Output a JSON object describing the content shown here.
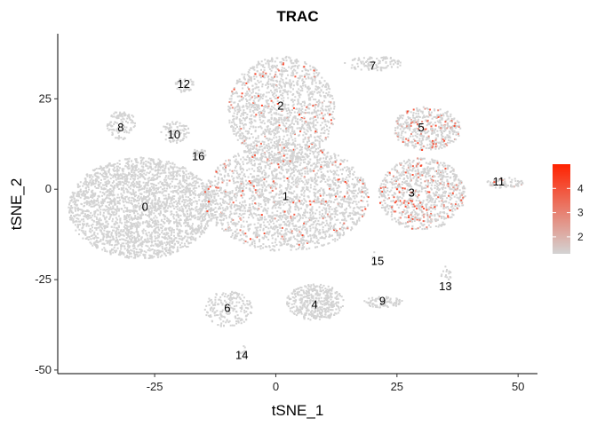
{
  "chart_data": {
    "type": "scatter",
    "title": "TRAC",
    "xlabel": "tSNE_1",
    "ylabel": "tSNE_2",
    "xlim": [
      -45,
      54
    ],
    "ylim": [
      -51,
      43
    ],
    "xticks": [
      -25,
      0,
      25,
      50
    ],
    "yticks": [
      -50,
      -25,
      0,
      25
    ],
    "grid": false,
    "colors": {
      "low": "#d3d3d3",
      "high": "#ff2200"
    },
    "legend": {
      "position": "right",
      "type": "colorbar",
      "range": [
        1.3,
        5
      ],
      "ticks": [
        2,
        3,
        4
      ]
    },
    "clusters": [
      {
        "label": "0",
        "x": -27,
        "y": -5
      },
      {
        "label": "1",
        "x": 2,
        "y": -2
      },
      {
        "label": "2",
        "x": 1,
        "y": 23
      },
      {
        "label": "3",
        "x": 28,
        "y": -1
      },
      {
        "label": "4",
        "x": 8,
        "y": -32
      },
      {
        "label": "5",
        "x": 30,
        "y": 17
      },
      {
        "label": "6",
        "x": -10,
        "y": -33
      },
      {
        "label": "7",
        "x": 20,
        "y": 34
      },
      {
        "label": "8",
        "x": -32,
        "y": 17
      },
      {
        "label": "9",
        "x": 22,
        "y": -31
      },
      {
        "label": "10",
        "x": -21,
        "y": 15
      },
      {
        "label": "11",
        "x": 46,
        "y": 2
      },
      {
        "label": "12",
        "x": -19,
        "y": 29
      },
      {
        "label": "13",
        "x": 35,
        "y": -27
      },
      {
        "label": "14",
        "x": -7,
        "y": -46
      },
      {
        "label": "15",
        "x": 21,
        "y": -20
      },
      {
        "label": "16",
        "x": -16,
        "y": 9
      }
    ]
  }
}
